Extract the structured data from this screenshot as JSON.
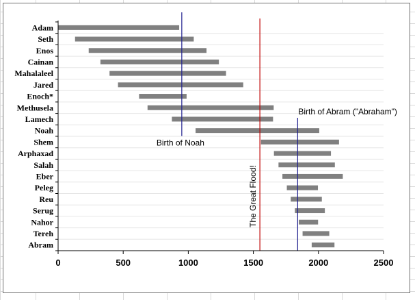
{
  "chart_data": {
    "type": "bar",
    "subtype": "floating-horizontal-bar",
    "title": "",
    "xlabel": "",
    "ylabel": "",
    "xlim": [
      0,
      2500
    ],
    "xticks": [
      0,
      500,
      1000,
      1500,
      2000,
      2500
    ],
    "grid": false,
    "categories": [
      "Adam",
      "Seth",
      "Enos",
      "Cainan",
      "Mahalaleel",
      "Jared",
      "Enoch*",
      "Methusela",
      "Lamech",
      "Noah",
      "Shem",
      "Arphaxad",
      "Salah",
      "Eber",
      "Peleg",
      "Reu",
      "Serug",
      "Nahor",
      "Tereh",
      "Abram"
    ],
    "start": [
      0,
      130,
      235,
      325,
      395,
      460,
      622,
      687,
      874,
      1056,
      1558,
      1658,
      1693,
      1723,
      1757,
      1787,
      1819,
      1849,
      1878,
      1948
    ],
    "end": [
      930,
      1042,
      1140,
      1235,
      1290,
      1422,
      987,
      1656,
      1651,
      2006,
      2158,
      2096,
      2126,
      2187,
      1996,
      2026,
      2049,
      1997,
      2083,
      2123
    ],
    "bar_color": "#808080",
    "reference_lines": [
      {
        "value": 950,
        "color": "#1f1f8f",
        "label": "Birth of Noah",
        "orientation": "horizontal"
      },
      {
        "value": 1550,
        "color": "#c00000",
        "label": "The Great Flood!",
        "orientation": "vertical"
      },
      {
        "value": 1840,
        "color": "#1f1f8f",
        "label": "Birth of Abram (\"Abraham\")",
        "orientation": "horizontal"
      }
    ]
  }
}
